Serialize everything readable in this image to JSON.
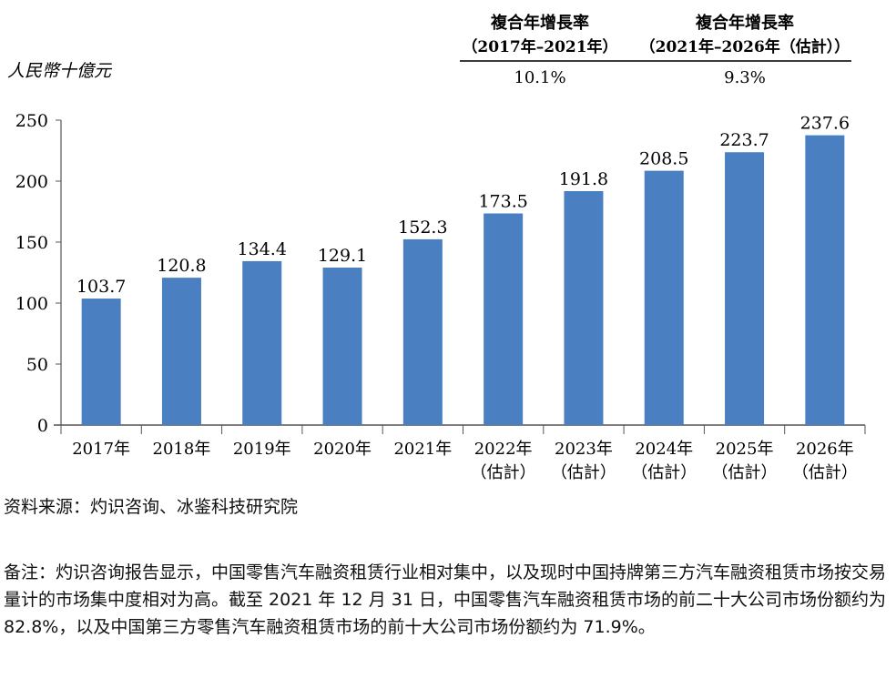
{
  "chart_data": {
    "type": "bar",
    "ylabel": "人民幣十億元",
    "categories": [
      "2017年",
      "2018年",
      "2019年",
      "2020年",
      "2021年",
      "2022年\n（估計）",
      "2023年\n（估計）",
      "2024年\n（估計）",
      "2025年\n（估計）",
      "2026年\n（估計）"
    ],
    "values": [
      103.7,
      120.8,
      134.4,
      129.1,
      152.3,
      173.5,
      191.8,
      208.5,
      223.7,
      237.6
    ],
    "ylim": [
      0,
      250
    ],
    "yticks": [
      0,
      50,
      100,
      150,
      200,
      250
    ],
    "grid": false,
    "bar_color": "#4a7fc1",
    "cagr_table": {
      "headers": [
        [
          "複合年增長率",
          "（2017年–2021年）"
        ],
        [
          "複合年增長率",
          "（2021年–2026年（估計））"
        ]
      ],
      "values": [
        "10.1%",
        "9.3%"
      ]
    }
  },
  "source": "资料来源：灼识咨询、冰鉴科技研究院",
  "note": "备注：灼识咨询报告显示，中国零售汽车融资租赁行业相对集中，以及现时中国持牌第三方汽车融资租赁市场按交易量计的市场集中度相对为高。截至 2021 年 12 月 31 日，中国零售汽车融资租赁市场的前二十大公司市场份额约为 82.8%，以及中国第三方零售汽车融资租赁市场的前十大公司市场份额约为 71.9%。"
}
